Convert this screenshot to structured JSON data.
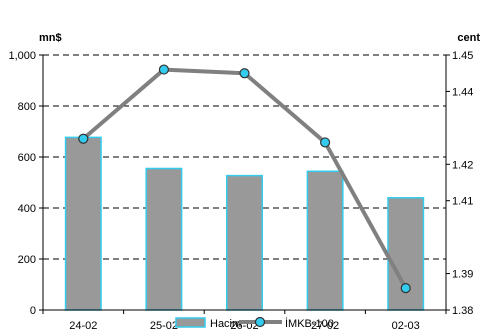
{
  "chart_data": {
    "type": "bar",
    "categories": [
      "24-02",
      "25-02",
      "26-02",
      "27-02",
      "02-03"
    ],
    "series": [
      {
        "name": "Hacim",
        "type": "bar",
        "axis": "left",
        "values": [
          677,
          555,
          527,
          544,
          440
        ]
      },
      {
        "name": "İMKB-100",
        "type": "line",
        "axis": "right",
        "values": [
          1.427,
          1.446,
          1.445,
          1.426,
          1.386
        ]
      }
    ],
    "y_left": {
      "unit": "mn$",
      "range": [
        0,
        1000
      ],
      "ticks": [
        0,
        200,
        400,
        600,
        800,
        1000
      ],
      "tick_labels": [
        "0",
        "200",
        "400",
        "600",
        "800",
        "1,000"
      ]
    },
    "y_right": {
      "unit": "cent",
      "range": [
        1.38,
        1.45
      ],
      "ticks": [
        1.38,
        1.39,
        1.41,
        1.42,
        1.44,
        1.45
      ],
      "tick_labels": [
        "1.38",
        "1.39",
        "1.41",
        "1.42",
        "1.44",
        "1.45"
      ]
    },
    "grid": "dashed horizontal",
    "legend": "bottom-center",
    "colors": {
      "bar_fill": "#999999",
      "bar_stroke": "#33ccee",
      "line": "#808080",
      "marker_fill": "#33ccee",
      "marker_stroke": "#333333"
    }
  }
}
